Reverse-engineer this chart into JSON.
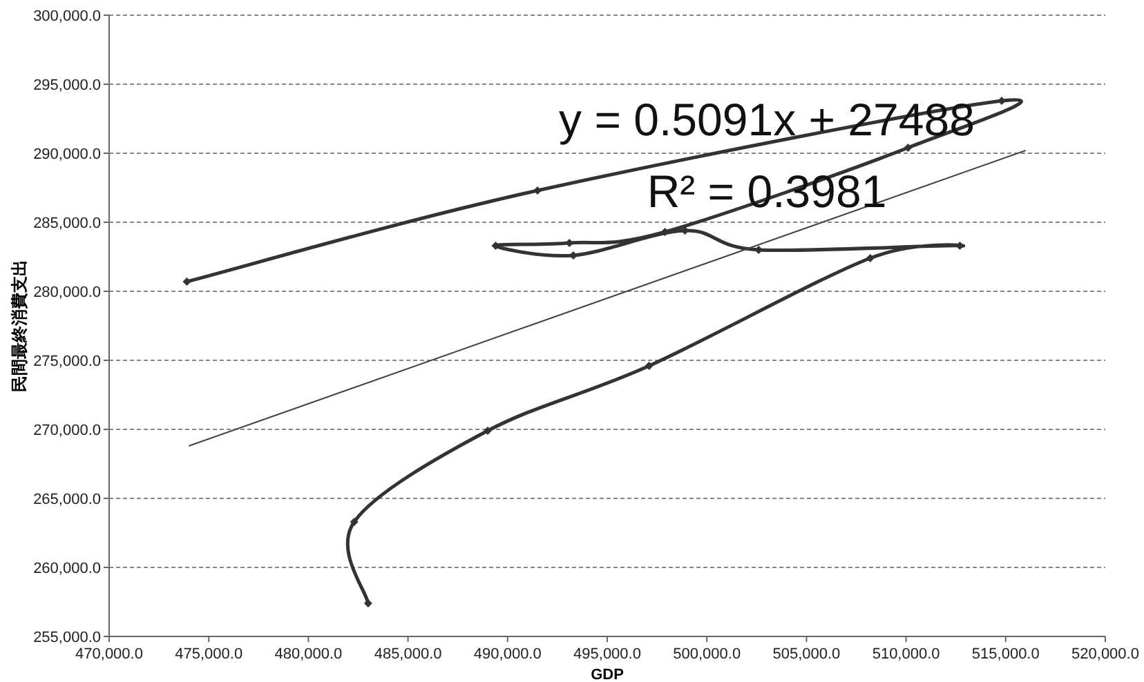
{
  "chart_data": {
    "type": "line",
    "xlabel": "GDP",
    "ylabel": "民間最終消費支出",
    "annotations": [
      "y = 0.5091x + 27488",
      "R² = 0.3981"
    ],
    "xlim": [
      470000,
      520000
    ],
    "ylim": [
      255000,
      300000
    ],
    "xticks": [
      {
        "value": 470000,
        "label": "470,000.0"
      },
      {
        "value": 475000,
        "label": "475,000.0"
      },
      {
        "value": 480000,
        "label": "480,000.0"
      },
      {
        "value": 485000,
        "label": "485,000.0"
      },
      {
        "value": 490000,
        "label": "490,000.0"
      },
      {
        "value": 495000,
        "label": "495,000.0"
      },
      {
        "value": 500000,
        "label": "500,000.0"
      },
      {
        "value": 505000,
        "label": "505,000.0"
      },
      {
        "value": 510000,
        "label": "510,000.0"
      },
      {
        "value": 515000,
        "label": "515,000.0"
      },
      {
        "value": 520000,
        "label": "520,000.0"
      }
    ],
    "yticks": [
      {
        "value": 255000,
        "label": "255,000.0"
      },
      {
        "value": 260000,
        "label": "260,000.0"
      },
      {
        "value": 265000,
        "label": "265,000.0"
      },
      {
        "value": 270000,
        "label": "270,000.0"
      },
      {
        "value": 275000,
        "label": "275,000.0"
      },
      {
        "value": 280000,
        "label": "280,000.0"
      },
      {
        "value": 285000,
        "label": "285,000.0"
      },
      {
        "value": 290000,
        "label": "290,000.0"
      },
      {
        "value": 295000,
        "label": "295,000.0"
      },
      {
        "value": 300000,
        "label": "300,000.0"
      }
    ],
    "grid": "y",
    "series": [
      {
        "color": "#333333",
        "marker": "diamond",
        "x": [
          473900,
          491500,
          514800,
          510100,
          497900,
          493100,
          489400,
          493300,
          498900,
          502600,
          512700,
          508200,
          497100,
          489000,
          482300,
          483000
        ],
        "values": [
          280700,
          287300,
          293800,
          290400,
          284300,
          283500,
          283300,
          282600,
          284400,
          283000,
          283300,
          282400,
          274600,
          269900,
          263300,
          257400
        ]
      },
      {
        "color": "#444444",
        "marker": "none",
        "x": [
          474000,
          516000
        ],
        "values": [
          268800,
          290200
        ]
      }
    ]
  }
}
